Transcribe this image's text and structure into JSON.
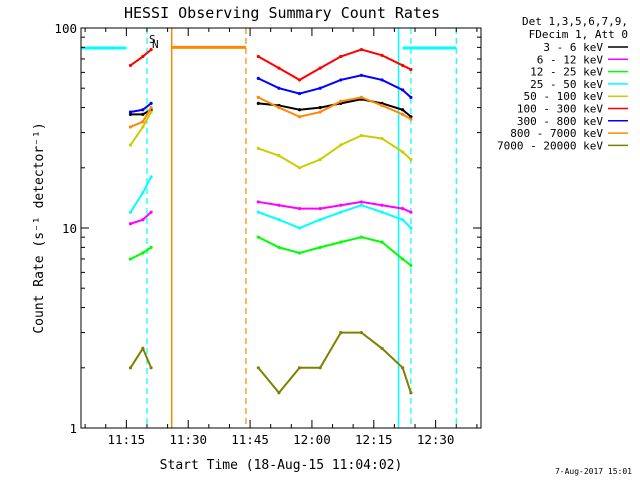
{
  "chart_data": {
    "type": "line",
    "title": "HESSI Observing Summary Count Rates",
    "xlabel": "Start Time (18-Aug-15 11:04:02)",
    "ylabel": "Count Rate (s⁻¹ detector⁻¹)",
    "x_ticks": [
      "11:15",
      "11:30",
      "11:45",
      "12:00",
      "12:15",
      "12:30"
    ],
    "x_range": [
      "11:04",
      "12:41"
    ],
    "y_scale": "log",
    "y_range": [
      1,
      100
    ],
    "y_ticks": [
      "1",
      "10",
      "100"
    ],
    "legend_header": [
      "Det 1,3,5,6,7,9,",
      "FDecim 1, Att 0"
    ],
    "legend_placement": "right",
    "series": [
      {
        "name": "3 - 6 keV",
        "color": "#000000",
        "x": [
          "11:16",
          "11:19",
          "11:21",
          "11:47",
          "11:52",
          "11:57",
          "12:02",
          "12:07",
          "12:12",
          "12:17",
          "12:22",
          "12:24"
        ],
        "values": [
          37,
          37,
          39,
          42,
          41,
          39,
          40,
          42,
          44,
          42,
          39,
          36
        ]
      },
      {
        "name": "6 - 12 keV",
        "color": "#ff00ff",
        "x": [
          "11:16",
          "11:19",
          "11:21",
          "11:47",
          "11:52",
          "11:57",
          "12:02",
          "12:07",
          "12:12",
          "12:17",
          "12:22",
          "12:24"
        ],
        "values": [
          10.5,
          11,
          12,
          13.5,
          13,
          12.5,
          12.5,
          13,
          13.5,
          13,
          12.5,
          12
        ]
      },
      {
        "name": "12 - 25 keV",
        "color": "#00ff00",
        "x": [
          "11:16",
          "11:19",
          "11:21",
          "11:47",
          "11:52",
          "11:57",
          "12:02",
          "12:07",
          "12:12",
          "12:17",
          "12:22",
          "12:24"
        ],
        "values": [
          7,
          7.5,
          8,
          9,
          8,
          7.5,
          8,
          8.5,
          9,
          8.5,
          7,
          6.5
        ]
      },
      {
        "name": "25 - 50 keV",
        "color": "#00ffff",
        "x": [
          "11:16",
          "11:19",
          "11:21",
          "11:47",
          "11:52",
          "11:57",
          "12:02",
          "12:07",
          "12:12",
          "12:17",
          "12:22",
          "12:24"
        ],
        "values": [
          12,
          15,
          18,
          12,
          11,
          10,
          11,
          12,
          13,
          12,
          11,
          10
        ]
      },
      {
        "name": "50 - 100 keV",
        "color": "#cccc00",
        "x": [
          "11:16",
          "11:19",
          "11:21",
          "11:47",
          "11:52",
          "11:57",
          "12:02",
          "12:07",
          "12:12",
          "12:17",
          "12:22",
          "12:24"
        ],
        "values": [
          26,
          32,
          38,
          25,
          23,
          20,
          22,
          26,
          29,
          28,
          24,
          22
        ]
      },
      {
        "name": "100 - 300 keV",
        "color": "#ff0000",
        "x": [
          "11:16",
          "11:19",
          "11:21",
          "11:47",
          "11:52",
          "11:57",
          "12:02",
          "12:07",
          "12:12",
          "12:17",
          "12:22",
          "12:24"
        ],
        "values": [
          65,
          72,
          78,
          72,
          63,
          55,
          63,
          72,
          78,
          73,
          65,
          62
        ]
      },
      {
        "name": "300 - 800 keV",
        "color": "#0000ff",
        "x": [
          "11:16",
          "11:19",
          "11:21",
          "11:47",
          "11:52",
          "11:57",
          "12:02",
          "12:07",
          "12:12",
          "12:17",
          "12:22",
          "12:24"
        ],
        "values": [
          38,
          39,
          42,
          56,
          50,
          47,
          50,
          55,
          58,
          55,
          49,
          45
        ]
      },
      {
        "name": "800 - 7000 keV",
        "color": "#ff8800",
        "x": [
          "11:16",
          "11:19",
          "11:21",
          "11:47",
          "11:52",
          "11:57",
          "12:02",
          "12:07",
          "12:12",
          "12:17",
          "12:22",
          "12:24"
        ],
        "values": [
          32,
          34,
          40,
          45,
          40,
          36,
          38,
          43,
          45,
          41,
          37,
          35
        ]
      },
      {
        "name": "7000 - 20000 keV",
        "color": "#808000",
        "x": [
          "11:16",
          "11:19",
          "11:21",
          "11:47",
          "11:52",
          "11:57",
          "12:02",
          "12:07",
          "12:12",
          "12:17",
          "12:22",
          "12:24"
        ],
        "values": [
          2,
          2.5,
          2,
          2,
          1.5,
          2,
          2,
          3,
          3,
          2.5,
          2,
          1.5
        ]
      }
    ],
    "annotations": {
      "saa_marker": {
        "label": "S",
        "color": "#ff8800"
      },
      "night_marker": {
        "label": "N",
        "color": "#00ffff"
      },
      "attenuator_level": 80,
      "saa_interval": [
        "11:26",
        "11:44"
      ],
      "night_intervals": [
        [
          "11:04",
          "11:15"
        ],
        [
          "12:22",
          "12:35"
        ]
      ],
      "markers_solid": [
        "11:26",
        "12:21"
      ],
      "markers_dashed_orange": [
        "11:44"
      ],
      "markers_dashed_cyan": [
        "11:20",
        "12:24",
        "12:35"
      ]
    },
    "grid": false,
    "colors": {
      "orange": "#ff8800",
      "cyan": "#00ffff"
    }
  },
  "footer": {
    "timestamp": "7-Aug-2017 15:01"
  }
}
